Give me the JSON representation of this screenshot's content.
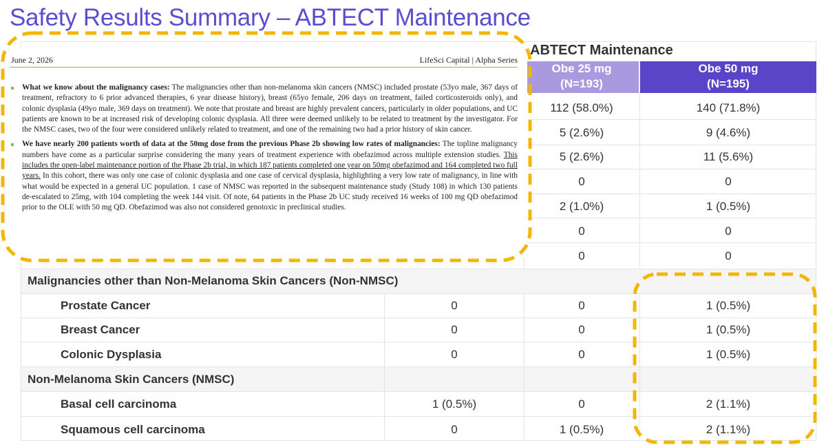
{
  "title": "Safety Results Summary – ABTECT Maintenance",
  "table": {
    "group_header": "ABTECT Maintenance",
    "col_headers": [
      {
        "line1": "Obe 25 mg",
        "line2": "(N=193)"
      },
      {
        "line1": "Obe 50 mg",
        "line2": "(N=195)"
      }
    ],
    "top_rows": [
      {
        "c2": "112 (58.0%)",
        "c3": "140 (71.8%)"
      },
      {
        "c2": "5 (2.6%)",
        "c3": "9 (4.6%)"
      },
      {
        "c2": "5 (2.6%)",
        "c3": "11 (5.6%)"
      },
      {
        "c2": "0",
        "c3": "0"
      },
      {
        "c2": "2 (1.0%)",
        "c3": "1 (0.5%)"
      },
      {
        "c2": "0",
        "c3": "0"
      },
      {
        "c2": "0",
        "c3": "0"
      }
    ],
    "section1": "Malignancies other than Non-Melanoma Skin Cancers (Non-NMSC)",
    "section1_rows": [
      {
        "label": "Prostate Cancer",
        "c1": "0",
        "c2": "0",
        "c3": "1 (0.5%)"
      },
      {
        "label": "Breast Cancer",
        "c1": "0",
        "c2": "0",
        "c3": "1 (0.5%)"
      },
      {
        "label": "Colonic Dysplasia",
        "c1": "0",
        "c2": "0",
        "c3": "1 (0.5%)"
      }
    ],
    "section2": "Non-Melanoma Skin Cancers (NMSC)",
    "section2_rows": [
      {
        "label": "Basal cell carcinoma",
        "c1": "1 (0.5%)",
        "c2": "0",
        "c3": "2 (1.1%)"
      },
      {
        "label": "Squamous cell carcinoma",
        "c1": "0",
        "c2": "1 (0.5%)",
        "c3": "2 (1.1%)"
      }
    ]
  },
  "document": {
    "date": "June 2, 2026",
    "source": "LifeSci Capital | Alpha Series",
    "bullet1_lead": "What we know about the malignancy cases:",
    "bullet1_text": " The malignancies other than non-melanoma skin cancers (NMSC) included prostate (53yo male, 367 days of treatment, refractory to 6 prior advanced therapies, 6 year disease history), breast (65yo female, 206 days on treatment, failed corticosteroids only), and colonic dysplasia (49yo male, 369 days on treatment). We note that prostate and breast are highly prevalent cancers, particularly in older populations, and UC patients are known to be at increased risk of developing colonic dysplasia. All three were deemed unlikely to be related to treatment by the investigator. For the NMSC cases, two of the four were considered unlikely related to treatment, and one of the remaining two had a prior history of skin cancer.",
    "bullet2_lead": "We have nearly 200 patients worth of data at the 50mg dose from the previous Phase 2b showing low rates of malignancies:",
    "bullet2_text_a": " The topline malignancy numbers have come as a particular surprise considering the many years of treatment experience with obefazimod across multiple extension studies. ",
    "bullet2_underlined": "This includes the open-label maintenance portion of the Phase 2b trial, in which 187 patients completed one year on 50mg obefazimod and 164 completed two full years.",
    "bullet2_text_b": " In this cohort, there was only one case of colonic dysplasia and one case of cervical dysplasia, highlighting a very low rate of malignancy, in line with what would be expected in a general UC population. 1 case of NMSC was reported in the subsequent maintenance study (Study 108) in which 130 patients de-escalated to 25mg, with 104 completing the week 144 visit. Of note, 64 patients in the Phase 2b UC study received 16 weeks of 100 mg QD obefazimod prior to the OLE with 50 mg QD. Obefazimod was also not considered genotoxic in preclinical studies."
  },
  "colors": {
    "title": "#5a4ed0",
    "header_light": "#a99ae0",
    "header_dark": "#5a44c8",
    "highlight_dash": "#f2b705",
    "doc_rule": "#8cb369"
  }
}
